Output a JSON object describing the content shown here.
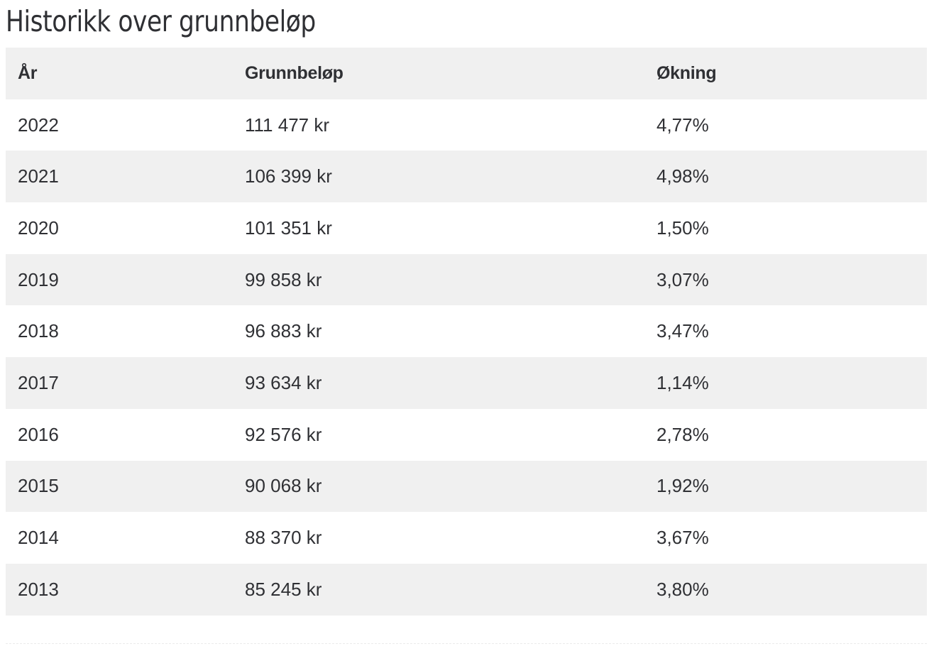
{
  "page": {
    "title": "Historikk over grunnbeløp"
  },
  "table": {
    "headers": {
      "year": "År",
      "amount": "Grunnbeløp",
      "increase": "Økning"
    },
    "rows": [
      {
        "year": "2022",
        "amount": "111 477 kr",
        "increase": "4,77%"
      },
      {
        "year": "2021",
        "amount": "106 399 kr",
        "increase": "4,98%"
      },
      {
        "year": "2020",
        "amount": "101 351 kr",
        "increase": "1,50%"
      },
      {
        "year": "2019",
        "amount": "99 858 kr",
        "increase": "3,07%"
      },
      {
        "year": "2018",
        "amount": "96 883 kr",
        "increase": "3,47%"
      },
      {
        "year": "2017",
        "amount": "93 634 kr",
        "increase": "1,14%"
      },
      {
        "year": "2016",
        "amount": "92 576 kr",
        "increase": "2,78%"
      },
      {
        "year": "2015",
        "amount": "90 068 kr",
        "increase": "1,92%"
      },
      {
        "year": "2014",
        "amount": "88 370 kr",
        "increase": "3,67%"
      },
      {
        "year": "2013",
        "amount": "85 245 kr",
        "increase": "3,80%"
      }
    ]
  },
  "colors": {
    "text": "#2f3034",
    "stripe": "#f0f0f0",
    "background": "#ffffff"
  }
}
